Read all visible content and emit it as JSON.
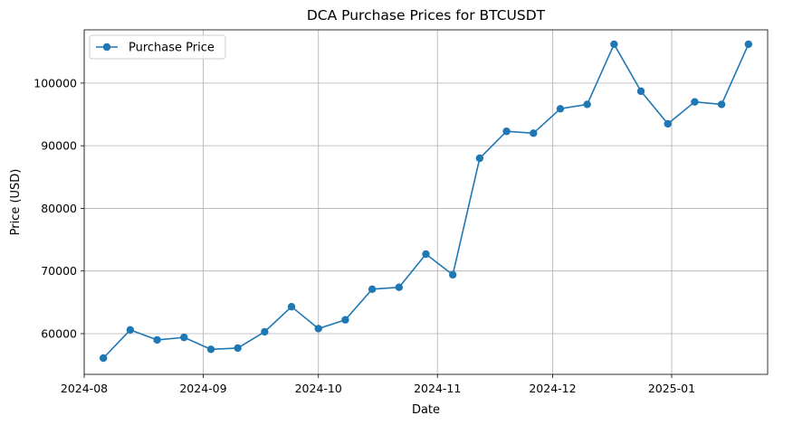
{
  "chart_data": {
    "type": "line",
    "title": "DCA Purchase Prices for BTCUSDT",
    "xlabel": "Date",
    "ylabel": "Price (USD)",
    "grid": true,
    "legend_position": "top-left",
    "xlim": [
      "2024-08-01",
      "2025-01-26"
    ],
    "ylim": [
      53500,
      108500
    ],
    "x_ticks": [
      {
        "date": "2024-08-01",
        "label": "2024-08"
      },
      {
        "date": "2024-09-01",
        "label": "2024-09"
      },
      {
        "date": "2024-10-01",
        "label": "2024-10"
      },
      {
        "date": "2024-11-01",
        "label": "2024-11"
      },
      {
        "date": "2024-12-01",
        "label": "2024-12"
      },
      {
        "date": "2025-01-01",
        "label": "2025-01"
      }
    ],
    "y_ticks": [
      60000,
      70000,
      80000,
      90000,
      100000
    ],
    "series": [
      {
        "name": "Purchase Price",
        "color": "#1f77b4",
        "marker": "circle",
        "points": [
          {
            "x": "2024-08-06",
            "y": 56100
          },
          {
            "x": "2024-08-13",
            "y": 60600
          },
          {
            "x": "2024-08-20",
            "y": 59000
          },
          {
            "x": "2024-08-27",
            "y": 59400
          },
          {
            "x": "2024-09-03",
            "y": 57500
          },
          {
            "x": "2024-09-10",
            "y": 57700
          },
          {
            "x": "2024-09-17",
            "y": 60300
          },
          {
            "x": "2024-09-24",
            "y": 64300
          },
          {
            "x": "2024-10-01",
            "y": 60800
          },
          {
            "x": "2024-10-08",
            "y": 62200
          },
          {
            "x": "2024-10-15",
            "y": 67100
          },
          {
            "x": "2024-10-22",
            "y": 67400
          },
          {
            "x": "2024-10-29",
            "y": 72700
          },
          {
            "x": "2024-11-05",
            "y": 69400
          },
          {
            "x": "2024-11-12",
            "y": 88000
          },
          {
            "x": "2024-11-19",
            "y": 92300
          },
          {
            "x": "2024-11-26",
            "y": 92000
          },
          {
            "x": "2024-12-03",
            "y": 95900
          },
          {
            "x": "2024-12-10",
            "y": 96600
          },
          {
            "x": "2024-12-17",
            "y": 106200
          },
          {
            "x": "2024-12-24",
            "y": 98700
          },
          {
            "x": "2024-12-31",
            "y": 93500
          },
          {
            "x": "2025-01-07",
            "y": 97000
          },
          {
            "x": "2025-01-14",
            "y": 96600
          },
          {
            "x": "2025-01-21",
            "y": 106200
          }
        ]
      }
    ]
  }
}
